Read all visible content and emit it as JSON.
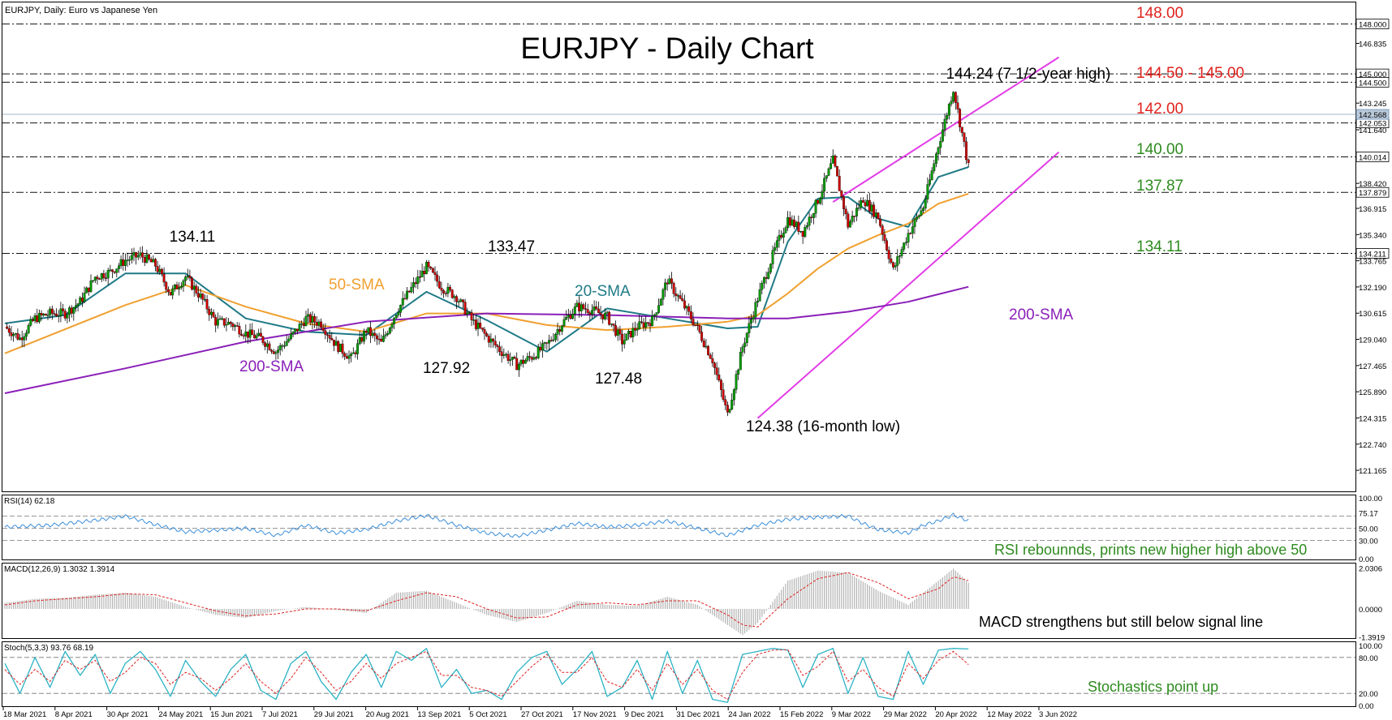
{
  "header": {
    "instrument": "EURJPY, Daily:  Euro vs Japanese Yen",
    "chart_title": "EURJPY - Daily Chart"
  },
  "colors": {
    "price_up": "#009900",
    "price_down": "#cc0000",
    "sma20": "#1f7a86",
    "sma50": "#f0a030",
    "sma200": "#8a1fb8",
    "channel": "#e23ce6",
    "level_red": "#e0231d",
    "level_green": "#2e8b1f",
    "rsi_line": "#3d8fd9",
    "macd_hist": "#b3b3b3",
    "macd_signal": "#dd2222",
    "stoch_main": "#2bb3c5",
    "stoch_signal": "#dd2222"
  },
  "chart_data": [
    {
      "type": "line",
      "panel": "price",
      "price_scale": [
        "148.000",
        "146.835",
        "145.000",
        "144.500",
        "143.245",
        "142.053",
        "141.640",
        "140.014",
        "138.420",
        "137.879",
        "136.915",
        "135.340",
        "134.211",
        "133.765",
        "132.190",
        "130.615",
        "129.040",
        "127.465",
        "125.890",
        "124.315",
        "122.740",
        "121.165"
      ],
      "current_price": "142.568",
      "ylim": [
        120.0,
        149.2
      ],
      "x_labels": [
        "18 Mar 2021",
        "8 Apr 2021",
        "30 Apr 2021",
        "24 May 2021",
        "15 Jun 2021",
        "7 Jul 2021",
        "29 Jul 2021",
        "20 Aug 2021",
        "13 Sep 2021",
        "5 Oct 2021",
        "27 Oct 2021",
        "17 Nov 2021",
        "9 Dec 2021",
        "31 Dec 2021",
        "24 Jan 2022",
        "15 Feb 2022",
        "9 Mar 2022",
        "29 Mar 2022",
        "20 Apr 2022",
        "12 May 2022",
        "3 Jun 2022"
      ],
      "levels": [
        {
          "value": 148.0,
          "label": "148.00",
          "color": "red"
        },
        {
          "value": 145.0,
          "label": "144.50 - 145.00",
          "color": "red"
        },
        {
          "value": 144.5,
          "label": "",
          "color": "red"
        },
        {
          "value": 142.053,
          "label": "142.00",
          "color": "red"
        },
        {
          "value": 140.014,
          "label": "140.00",
          "color": "green"
        },
        {
          "value": 137.879,
          "label": "137.87",
          "color": "green"
        },
        {
          "value": 134.211,
          "label": "134.11",
          "color": "green"
        }
      ],
      "annotations": [
        {
          "text": "134.11",
          "x": "24 May 2021",
          "y": 134.11
        },
        {
          "text": "133.47",
          "x": "5 Oct 2021",
          "y": 133.47
        },
        {
          "text": "127.92",
          "x": "13 Sep 2021",
          "y": 127.92
        },
        {
          "text": "127.48",
          "x": "17 Nov 2021",
          "y": 127.48
        },
        {
          "text": "124.38 (16-month low)",
          "x": "7 Mar 2022",
          "y": 124.38
        },
        {
          "text": "144.24  (7 1/2-year high)",
          "x": "1 Jun 2022",
          "y": 144.24
        }
      ],
      "series": [
        {
          "name": "EURJPY",
          "kind": "candles",
          "x": [
            0,
            7,
            14,
            21,
            28,
            35,
            42,
            49,
            56,
            63,
            70,
            77,
            84,
            91,
            98,
            105,
            112,
            119,
            126,
            133,
            140,
            147,
            154,
            161,
            168,
            175,
            182,
            189,
            196,
            203,
            210,
            217,
            224,
            231,
            238,
            245,
            252,
            259,
            266,
            273,
            280,
            287,
            294,
            301,
            308,
            315,
            322,
            329,
            336,
            343,
            350,
            357,
            364,
            371,
            378,
            385,
            392,
            399,
            406,
            413,
            420,
            427,
            434,
            441,
            448
          ],
          "values": [
            129.8,
            129.1,
            130.3,
            130.6,
            130.6,
            131.3,
            132.8,
            133.1,
            133.8,
            134.1,
            133.5,
            131.8,
            132.8,
            131.6,
            130.1,
            130.0,
            129.4,
            129.1,
            128.3,
            129.2,
            130.3,
            130.0,
            128.7,
            127.9,
            129.6,
            128.8,
            130.7,
            132.1,
            133.4,
            132.2,
            131.6,
            130.2,
            129.2,
            128.3,
            127.5,
            128.0,
            128.7,
            130.0,
            131.0,
            130.8,
            130.4,
            128.9,
            129.8,
            130.2,
            132.6,
            131.2,
            129.7,
            127.8,
            124.5,
            128.6,
            131.5,
            134.1,
            136.3,
            135.5,
            137.4,
            139.8,
            135.9,
            137.5,
            136.4,
            133.2,
            135.4,
            137.0,
            140.7,
            144.1,
            139.4
          ]
        },
        {
          "name": "20-SMA",
          "x": [
            0,
            28,
            56,
            84,
            112,
            140,
            168,
            196,
            224,
            252,
            280,
            308,
            336,
            350,
            364,
            378,
            392,
            406,
            420,
            434,
            448
          ],
          "values": [
            130.0,
            130.5,
            133.0,
            133.0,
            130.3,
            129.5,
            129.3,
            131.9,
            130.2,
            128.3,
            130.9,
            130.3,
            129.7,
            129.8,
            134.9,
            137.5,
            137.6,
            136.3,
            135.8,
            138.8,
            139.4
          ]
        },
        {
          "name": "50-SMA",
          "x": [
            0,
            56,
            84,
            112,
            140,
            168,
            196,
            224,
            252,
            280,
            308,
            336,
            350,
            364,
            378,
            392,
            406,
            420,
            434,
            448
          ],
          "values": [
            128.2,
            131.1,
            132.3,
            131.0,
            130.0,
            129.5,
            130.6,
            130.6,
            129.9,
            129.6,
            129.8,
            130.1,
            130.5,
            131.8,
            133.3,
            134.5,
            135.3,
            136.0,
            137.2,
            137.8
          ]
        },
        {
          "name": "200-SMA",
          "x": [
            0,
            56,
            112,
            168,
            224,
            280,
            336,
            364,
            392,
            420,
            448
          ],
          "values": [
            125.8,
            127.3,
            128.9,
            130.1,
            130.6,
            130.5,
            130.3,
            130.3,
            130.7,
            131.3,
            132.2
          ]
        },
        {
          "name": "channel_upper",
          "x": [
            385,
            490
          ],
          "values": [
            137.3,
            146.0
          ]
        },
        {
          "name": "channel_lower",
          "x": [
            350,
            490
          ],
          "values": [
            124.3,
            140.3
          ]
        }
      ],
      "sma_labels": {
        "sma20": "20-SMA",
        "sma50": "50-SMA",
        "sma200_left": "200-SMA",
        "sma200_right": "200-SMA"
      }
    },
    {
      "type": "line",
      "panel": "rsi",
      "header": "RSI(14) 62.18",
      "scale": [
        "100.00",
        "75.17",
        "50.00",
        "30.00",
        "0.00"
      ],
      "ylim": [
        0,
        100
      ],
      "levels": [
        70,
        50,
        30
      ],
      "note": "RSI rebounnds, prints new higher high above 50",
      "series": [
        {
          "name": "RSI(14)",
          "x": [
            0,
            21,
            42,
            56,
            70,
            84,
            98,
            112,
            126,
            140,
            154,
            168,
            182,
            196,
            210,
            224,
            238,
            252,
            266,
            280,
            294,
            308,
            322,
            336,
            350,
            364,
            378,
            392,
            399,
            406,
            420,
            427,
            434,
            441,
            448
          ],
          "values": [
            52,
            55,
            63,
            70,
            56,
            44,
            47,
            50,
            38,
            55,
            42,
            48,
            62,
            71,
            55,
            42,
            37,
            47,
            58,
            52,
            55,
            62,
            50,
            38,
            55,
            65,
            68,
            70,
            58,
            48,
            42,
            55,
            62,
            72,
            62
          ]
        }
      ]
    },
    {
      "type": "bar",
      "panel": "macd",
      "header": "MACD(12,26,9) 1.3032 1.3914",
      "scale": [
        "2.0306",
        "0.0000",
        "-1.3919"
      ],
      "ylim": [
        -1.45,
        2.05
      ],
      "note": "MACD strengthens but still below signal line",
      "series": [
        {
          "name": "MACD",
          "x": [
            0,
            14,
            28,
            42,
            56,
            70,
            84,
            98,
            112,
            126,
            140,
            154,
            168,
            182,
            196,
            210,
            224,
            238,
            252,
            266,
            280,
            294,
            308,
            322,
            336,
            343,
            350,
            364,
            378,
            392,
            406,
            420,
            434,
            441,
            448
          ],
          "values": [
            0.3,
            0.5,
            0.55,
            0.7,
            0.8,
            0.6,
            0.1,
            -0.3,
            -0.45,
            -0.1,
            0.1,
            -0.05,
            -0.2,
            0.8,
            0.9,
            0.3,
            -0.3,
            -0.65,
            -0.2,
            0.4,
            0.2,
            0.15,
            0.6,
            0.2,
            -0.8,
            -1.3,
            -0.7,
            1.4,
            1.9,
            1.8,
            0.9,
            0.2,
            1.4,
            2.0,
            1.3
          ]
        },
        {
          "name": "Signal",
          "x": [
            0,
            14,
            28,
            42,
            56,
            70,
            84,
            98,
            112,
            126,
            140,
            154,
            168,
            182,
            196,
            210,
            224,
            238,
            252,
            266,
            280,
            294,
            308,
            322,
            336,
            343,
            350,
            364,
            378,
            392,
            406,
            420,
            434,
            441,
            448
          ],
          "values": [
            0.2,
            0.4,
            0.5,
            0.6,
            0.75,
            0.7,
            0.3,
            -0.1,
            -0.35,
            -0.25,
            0.0,
            0.0,
            -0.1,
            0.4,
            0.8,
            0.6,
            0.0,
            -0.45,
            -0.4,
            0.2,
            0.3,
            0.2,
            0.4,
            0.4,
            -0.3,
            -0.8,
            -0.9,
            0.5,
            1.5,
            1.8,
            1.3,
            0.5,
            1.0,
            1.6,
            1.4
          ]
        }
      ]
    },
    {
      "type": "line",
      "panel": "stochastic",
      "header": "Stoch(5,3,3) 93.76 68.19",
      "scale": [
        "100.00",
        "80.00",
        "20.00",
        "0.00"
      ],
      "ylim": [
        0,
        100
      ],
      "levels": [
        80,
        20
      ],
      "note": "Stochastics point up",
      "series": [
        {
          "name": "%K",
          "x": [
            0,
            7,
            14,
            21,
            28,
            35,
            42,
            49,
            56,
            63,
            70,
            77,
            84,
            91,
            98,
            105,
            112,
            119,
            126,
            133,
            140,
            147,
            154,
            161,
            168,
            175,
            182,
            189,
            196,
            203,
            210,
            217,
            224,
            231,
            238,
            245,
            252,
            259,
            266,
            273,
            280,
            287,
            294,
            301,
            308,
            315,
            322,
            329,
            336,
            343,
            350,
            357,
            364,
            371,
            378,
            385,
            392,
            399,
            406,
            413,
            420,
            427,
            434,
            441,
            448
          ],
          "values": [
            70,
            20,
            80,
            30,
            90,
            50,
            85,
            20,
            70,
            90,
            60,
            15,
            75,
            40,
            15,
            60,
            85,
            25,
            10,
            70,
            90,
            40,
            10,
            55,
            85,
            30,
            90,
            75,
            95,
            30,
            60,
            20,
            25,
            10,
            55,
            80,
            90,
            35,
            60,
            90,
            15,
            30,
            75,
            10,
            90,
            20,
            75,
            10,
            5,
            85,
            90,
            95,
            92,
            30,
            85,
            95,
            20,
            80,
            15,
            10,
            90,
            35,
            92,
            95,
            94
          ]
        },
        {
          "name": "%D",
          "x": [
            0,
            7,
            14,
            21,
            28,
            35,
            42,
            49,
            56,
            63,
            70,
            77,
            84,
            91,
            98,
            105,
            112,
            119,
            126,
            133,
            140,
            147,
            154,
            161,
            168,
            175,
            182,
            189,
            196,
            203,
            210,
            217,
            224,
            231,
            238,
            245,
            252,
            259,
            266,
            273,
            280,
            287,
            294,
            301,
            308,
            315,
            322,
            329,
            336,
            343,
            350,
            357,
            364,
            371,
            378,
            385,
            392,
            399,
            406,
            413,
            420,
            427,
            434,
            441,
            448
          ],
          "values": [
            60,
            35,
            60,
            40,
            75,
            60,
            75,
            40,
            55,
            80,
            70,
            35,
            55,
            45,
            25,
            45,
            70,
            40,
            20,
            45,
            80,
            55,
            25,
            40,
            70,
            45,
            70,
            80,
            90,
            50,
            50,
            30,
            25,
            15,
            40,
            65,
            85,
            55,
            55,
            80,
            40,
            30,
            60,
            25,
            70,
            35,
            60,
            25,
            10,
            55,
            85,
            92,
            93,
            50,
            65,
            90,
            40,
            60,
            30,
            15,
            70,
            45,
            75,
            90,
            68
          ]
        }
      ]
    }
  ]
}
